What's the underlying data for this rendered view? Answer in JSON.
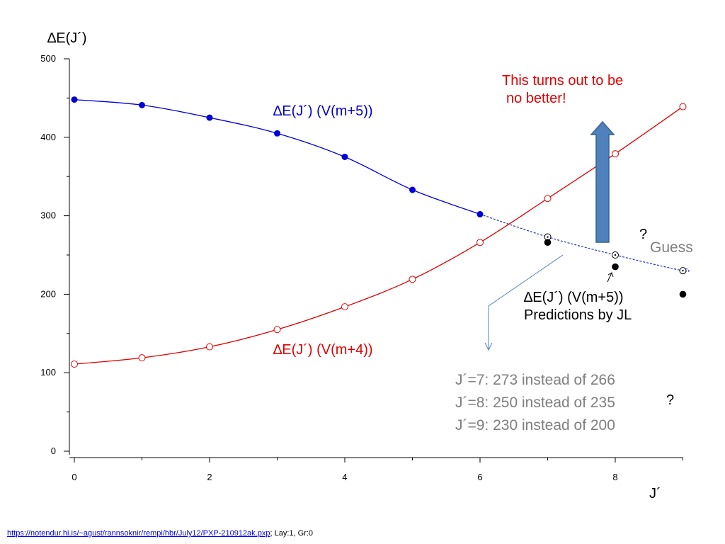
{
  "chart_data": {
    "type": "line",
    "x_ticks": [
      0,
      2,
      4,
      6,
      8
    ],
    "y_ticks": [
      0,
      100,
      200,
      300,
      400,
      500
    ],
    "xlim": [
      0,
      9
    ],
    "ylim": [
      0,
      500
    ],
    "xlabel": "J´",
    "ylabel": "∆E(J´)",
    "series": [
      {
        "name": "∆E(J´) (V(m+5))",
        "color": "#0000dd",
        "marker": "filled-circle",
        "x": [
          0,
          1,
          2,
          3,
          4,
          5,
          6
        ],
        "values": [
          448,
          441,
          425,
          405,
          375,
          333,
          302
        ]
      },
      {
        "name": "∆E(J´) (V(m+5)) dashed extrapolation",
        "color": "#1a33bb",
        "marker": "open-circle",
        "x": [
          6,
          7,
          8,
          9
        ],
        "values": [
          302,
          273,
          250,
          230
        ]
      },
      {
        "name": "∆E(J´) (V(m+4))",
        "color": "#e00000",
        "marker": "open-circle",
        "x": [
          0,
          1,
          2,
          3,
          4,
          5,
          6,
          7,
          8,
          9
        ],
        "values": [
          111,
          119,
          133,
          155,
          184,
          219,
          266,
          322,
          379,
          439
        ]
      },
      {
        "name": "Predictions by JL",
        "color": "#000000",
        "marker": "filled-circle",
        "x": [
          7,
          8,
          9
        ],
        "values": [
          266,
          235,
          200
        ]
      }
    ]
  },
  "annotations": {
    "red_note_line1": "This turns out to be",
    "red_note_line2": "no better!",
    "blue_label": "∆E(J´) (V(m+5))",
    "red_label": "∆E(J´) (V(m+4))",
    "question_mark_1": "?",
    "guess": "Guess",
    "jl_label_line1": "∆E(J´) (V(m+5))",
    "jl_label_line2": "Predictions by JL",
    "comparison": [
      "J´=7:  273 instead of 266",
      "J´=8:  250 instead of 235",
      "J´=9:  230 instead of 200"
    ],
    "question_mark_2": "?"
  },
  "footer": {
    "link_text": "https://notendur.hi.is/~agust/rannsoknir/rempi/hbr/July12/PXP-210912ak.pxp",
    "suffix": "; Lay:1, Gr:0"
  },
  "arrow_color": "#4f81bd"
}
